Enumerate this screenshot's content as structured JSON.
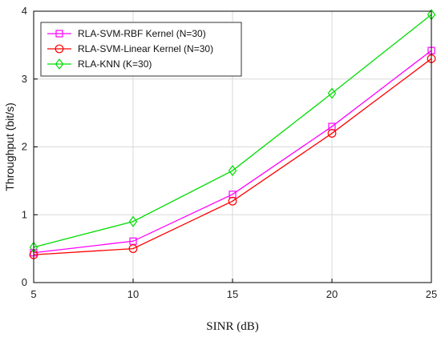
{
  "chart_data": {
    "type": "line",
    "xlabel": "SINR (dB)",
    "ylabel": "Throughput (bit/s)",
    "xlim": [
      5,
      25
    ],
    "ylim": [
      0,
      4
    ],
    "xticks": [
      5,
      10,
      15,
      20,
      25
    ],
    "yticks": [
      0,
      1,
      2,
      3,
      4
    ],
    "grid": true,
    "legend_position": "top-left",
    "series": [
      {
        "name": "RLA-SVM-RBF Kernel (N=30)",
        "color": "#ff00ff",
        "marker": "square",
        "x": [
          5,
          10,
          15,
          20,
          25
        ],
        "y": [
          0.44,
          0.61,
          1.3,
          2.3,
          3.42
        ]
      },
      {
        "name": "RLA-SVM-Linear Kernel (N=30)",
        "color": "#ff0000",
        "marker": "circle",
        "x": [
          5,
          10,
          15,
          20,
          25
        ],
        "y": [
          0.41,
          0.5,
          1.2,
          2.2,
          3.3
        ]
      },
      {
        "name": "RLA-KNN (K=30)",
        "color": "#00dd00",
        "marker": "diamond",
        "x": [
          5,
          10,
          15,
          20,
          25
        ],
        "y": [
          0.52,
          0.9,
          1.65,
          2.79,
          3.95
        ]
      }
    ]
  }
}
